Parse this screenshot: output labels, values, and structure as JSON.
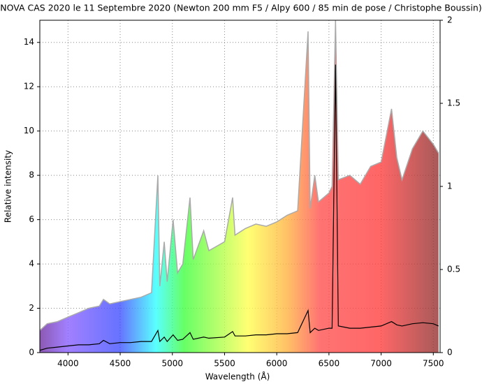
{
  "chart_data": {
    "type": "line",
    "title": "NOVA CAS 2020 le 11 Septembre 2020 (Newton 200 mm F5 / Alpy 600 / 85 min de pose / Christophe Boussin)",
    "x_label": "Wavelength (Å)",
    "y_label": "Relative intensity",
    "x": [
      3730,
      3800,
      3900,
      4000,
      4100,
      4200,
      4300,
      4340,
      4400,
      4500,
      4600,
      4700,
      4800,
      4861,
      4880,
      4922,
      4950,
      5007,
      5050,
      5100,
      5169,
      5200,
      5300,
      5350,
      5500,
      5577,
      5600,
      5700,
      5800,
      5900,
      6000,
      6100,
      6200,
      6300,
      6320,
      6364,
      6400,
      6500,
      6530,
      6563,
      6590,
      6700,
      6800,
      6900,
      7000,
      7100,
      7150,
      7200,
      7300,
      7400,
      7500,
      7550
    ],
    "series": [
      {
        "name": "gray",
        "color": "#aaaaaa",
        "values": [
          1.0,
          1.3,
          1.4,
          1.6,
          1.8,
          2.0,
          2.1,
          2.4,
          2.2,
          2.3,
          2.4,
          2.5,
          2.7,
          8.0,
          3.0,
          5.0,
          3.2,
          6.0,
          3.6,
          4.0,
          7.0,
          4.2,
          5.5,
          4.6,
          5.0,
          7.0,
          5.3,
          5.6,
          5.8,
          5.7,
          5.9,
          6.2,
          6.4,
          14.5,
          6.5,
          8.0,
          6.8,
          7.2,
          7.5,
          15,
          7.8,
          8.0,
          7.6,
          8.4,
          8.6,
          11.0,
          8.8,
          7.8,
          9.2,
          10.0,
          9.4,
          9.0
        ]
      },
      {
        "name": "black",
        "color": "#000000",
        "values": [
          0.1,
          0.2,
          0.25,
          0.3,
          0.35,
          0.35,
          0.4,
          0.55,
          0.4,
          0.45,
          0.45,
          0.5,
          0.5,
          1.0,
          0.5,
          0.7,
          0.5,
          0.8,
          0.55,
          0.6,
          0.9,
          0.6,
          0.7,
          0.65,
          0.7,
          0.95,
          0.75,
          0.75,
          0.8,
          0.8,
          0.85,
          0.85,
          0.9,
          1.9,
          0.9,
          1.1,
          1.0,
          1.1,
          1.1,
          13.0,
          1.2,
          1.1,
          1.1,
          1.15,
          1.2,
          1.4,
          1.25,
          1.2,
          1.3,
          1.35,
          1.3,
          1.2
        ]
      }
    ],
    "xlim": [
      3730,
      7565
    ],
    "xticks": [
      4000,
      4500,
      5000,
      5500,
      6000,
      6500,
      7000,
      7500
    ],
    "ylim": [
      0,
      15
    ],
    "yticks": [
      0,
      2,
      4,
      6,
      8,
      10,
      12,
      14
    ],
    "y2lim": [
      0,
      2
    ],
    "y2ticks": [
      0,
      0.5,
      1,
      1.5,
      2
    ],
    "grid": true
  }
}
